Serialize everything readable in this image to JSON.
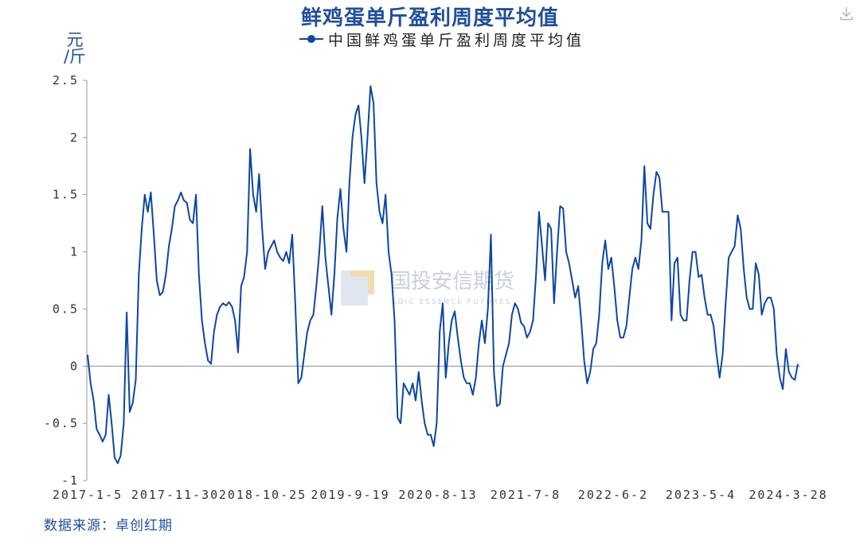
{
  "title": "鲜鸡蛋单斤盈利周度平均值",
  "unit_line1": "元",
  "unit_line2": "/斤",
  "source": "数据来源：卓创红期",
  "watermark": {
    "name": "国投安信期货",
    "subtitle": "SDIC ESSENCE FUTURES"
  },
  "colors": {
    "line": "#0d47a1",
    "title": "#1f4e9c"
  },
  "icons": {
    "download": "download-icon"
  },
  "chart_data": {
    "type": "line",
    "series": [
      {
        "name": "中国鲜鸡蛋单斤盈利周度平均值",
        "values": [
          0.1,
          -0.15,
          -0.3,
          -0.55,
          -0.6,
          -0.66,
          -0.6,
          -0.25,
          -0.5,
          -0.8,
          -0.85,
          -0.78,
          -0.5,
          0.47,
          -0.4,
          -0.32,
          -0.12,
          0.8,
          1.2,
          1.5,
          1.35,
          1.52,
          1.15,
          0.75,
          0.62,
          0.65,
          0.8,
          1.05,
          1.2,
          1.4,
          1.45,
          1.52,
          1.45,
          1.43,
          1.28,
          1.25,
          1.5,
          0.8,
          0.4,
          0.2,
          0.05,
          0.02,
          0.3,
          0.45,
          0.52,
          0.55,
          0.53,
          0.56,
          0.52,
          0.4,
          0.12,
          0.7,
          0.78,
          1.0,
          1.9,
          1.5,
          1.35,
          1.68,
          1.2,
          0.85,
          1.0,
          1.05,
          1.1,
          1.0,
          0.95,
          0.92,
          1.0,
          0.9,
          1.15,
          0.55,
          -0.15,
          -0.1,
          0.1,
          0.3,
          0.4,
          0.45,
          0.7,
          1.0,
          1.4,
          0.95,
          0.7,
          0.45,
          0.8,
          1.3,
          1.55,
          1.2,
          1.0,
          1.6,
          2.0,
          2.2,
          2.28,
          2.0,
          1.6,
          2.0,
          2.45,
          2.3,
          1.6,
          1.35,
          1.25,
          1.5,
          1.0,
          0.8,
          0.4,
          -0.45,
          -0.5,
          -0.15,
          -0.2,
          -0.25,
          -0.15,
          -0.3,
          -0.05,
          -0.3,
          -0.5,
          -0.6,
          -0.6,
          -0.7,
          -0.5,
          0.3,
          0.55,
          -0.1,
          0.2,
          0.4,
          0.48,
          0.25,
          0.05,
          -0.1,
          -0.15,
          -0.15,
          -0.25,
          -0.1,
          0.2,
          0.4,
          0.2,
          0.5,
          1.15,
          -0.05,
          -0.35,
          -0.33,
          0.0,
          0.1,
          0.2,
          0.45,
          0.55,
          0.5,
          0.38,
          0.35,
          0.25,
          0.3,
          0.4,
          0.8,
          1.35,
          1.05,
          0.75,
          1.25,
          1.2,
          0.55,
          1.0,
          1.4,
          1.38,
          1.0,
          0.9,
          0.75,
          0.6,
          0.7,
          0.4,
          0.05,
          -0.15,
          -0.05,
          0.15,
          0.2,
          0.45,
          0.9,
          1.1,
          0.85,
          0.95,
          0.7,
          0.4,
          0.25,
          0.25,
          0.35,
          0.6,
          0.85,
          0.95,
          0.85,
          1.1,
          1.75,
          1.25,
          1.2,
          1.5,
          1.7,
          1.65,
          1.35,
          1.35,
          1.35,
          0.4,
          0.9,
          0.95,
          0.45,
          0.4,
          0.4,
          0.75,
          1.0,
          1.0,
          0.78,
          0.8,
          0.6,
          0.45,
          0.45,
          0.35,
          0.1,
          -0.1,
          0.1,
          0.55,
          0.95,
          1.0,
          1.05,
          1.32,
          1.2,
          0.85,
          0.6,
          0.5,
          0.5,
          0.9,
          0.8,
          0.45,
          0.55,
          0.6,
          0.6,
          0.5,
          0.1,
          -0.1,
          -0.2,
          0.15,
          -0.05,
          -0.1,
          -0.12,
          0.02
        ]
      }
    ],
    "x_tick_labels": [
      "2017-1-5",
      "2017-11-30",
      "2018-10-25",
      "2019-9-19",
      "2020-8-13",
      "2021-7-8",
      "2022-6-2",
      "2023-5-4",
      "2024-3-28"
    ],
    "y_ticks": [
      "-1",
      "-0.5",
      "0",
      "0.5",
      "1",
      "1.5",
      "2",
      "2.5"
    ],
    "ylim": [
      -1,
      2.5
    ],
    "legend_position": "top-center",
    "grid": false
  }
}
